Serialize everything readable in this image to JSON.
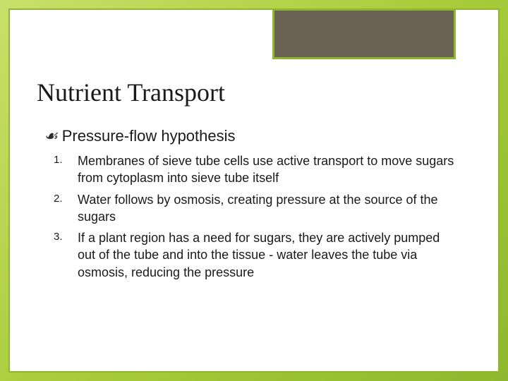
{
  "slide": {
    "background_gradient": [
      "#c8e06a",
      "#a8cc3a",
      "#8fb82e"
    ],
    "card_bg": "#ffffff",
    "card_border": "#8fb82e",
    "header_box": {
      "bg": "#6b6256",
      "border": "#8fb82e"
    },
    "title": "Nutrient Transport",
    "title_fontsize": 36,
    "subheading": {
      "bullet": "⧳",
      "text": "Pressure-flow hypothesis",
      "fontsize": 22
    },
    "list": {
      "num_fontsize": 15,
      "text_fontsize": 18,
      "items": [
        {
          "num": "1.",
          "text": "Membranes of sieve tube cells use active transport to move sugars from cytoplasm into sieve tube itself"
        },
        {
          "num": "2.",
          "text": "Water follows by osmosis, creating pressure at the source of the sugars"
        },
        {
          "num": "3.",
          "text": "If a plant region has a need for sugars, they are actively pumped out of the tube and into the tissue - water leaves the tube via osmosis, reducing the pressure"
        }
      ]
    }
  }
}
